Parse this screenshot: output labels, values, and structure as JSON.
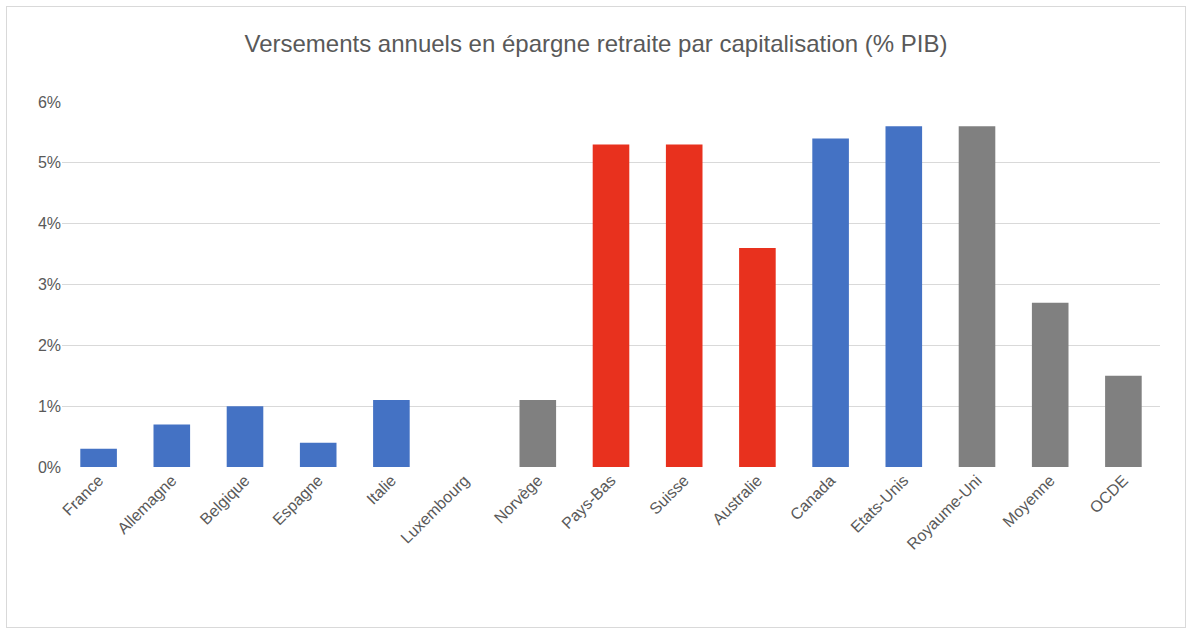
{
  "chart_data": {
    "type": "bar",
    "title": "Versements annuels en épargne retraite par capitalisation (% PIB)",
    "categories": [
      "France",
      "Allemagne",
      "Belgique",
      "Espagne",
      "Italie",
      "Luxembourg",
      "Norvège",
      "Pays-Bas",
      "Suisse",
      "Australie",
      "Canada",
      "Etats-Unis",
      "Royaume-Uni",
      "Moyenne",
      "OCDE"
    ],
    "values": [
      0.3,
      0.7,
      1.0,
      0.4,
      1.1,
      0,
      1.1,
      5.3,
      5.3,
      3.6,
      5.4,
      5.6,
      5.6,
      2.7,
      1.5
    ],
    "colors": [
      "#4472c4",
      "#4472c4",
      "#4472c4",
      "#4472c4",
      "#4472c4",
      "#4472c4",
      "#808080",
      "#e8311e",
      "#e8311e",
      "#e8311e",
      "#4472c4",
      "#4472c4",
      "#808080",
      "#808080",
      "#808080"
    ],
    "ylim": [
      0,
      6
    ],
    "yticks": [
      {
        "value": 0,
        "label": "0%"
      },
      {
        "value": 1,
        "label": "1%"
      },
      {
        "value": 2,
        "label": "2%"
      },
      {
        "value": 3,
        "label": "3%"
      },
      {
        "value": 4,
        "label": "4%"
      },
      {
        "value": 5,
        "label": "5%"
      },
      {
        "value": 6,
        "label": "6%"
      }
    ],
    "grid": true
  }
}
